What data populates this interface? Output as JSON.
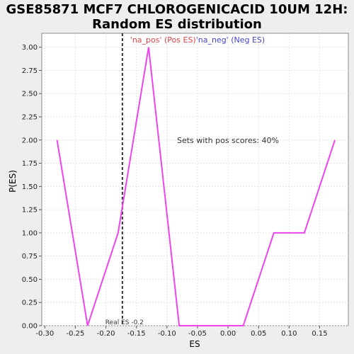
{
  "chart_data": {
    "type": "line",
    "title_line1": "GSE85871 MCF7 CHLOROGENICACID 10UM 12H:",
    "title_line2": "Random ES distribution",
    "xlabel": "ES",
    "ylabel": "P(ES)",
    "xlim": [
      -0.305,
      0.197
    ],
    "ylim": [
      0,
      3.15
    ],
    "x_ticks": [
      -0.3,
      -0.25,
      -0.2,
      -0.15,
      -0.1,
      -0.05,
      0.0,
      0.05,
      0.1,
      0.15
    ],
    "x_tick_labels": [
      "-0.30",
      "-0.25",
      "-0.20",
      "-0.15",
      "-0.10",
      "-0.05",
      "0.00",
      "0.05",
      "0.10",
      "0.15"
    ],
    "y_ticks": [
      0,
      0.25,
      0.5,
      0.75,
      1.0,
      1.25,
      1.5,
      1.75,
      2.0,
      2.25,
      2.5,
      2.75,
      3.0
    ],
    "y_tick_labels": [
      "0.00",
      "0.25",
      "0.50",
      "0.75",
      "1.00",
      "1.25",
      "1.50",
      "1.75",
      "2.00",
      "2.25",
      "2.50",
      "2.75",
      "3.00"
    ],
    "grid": true,
    "series": [
      {
        "color": "#ee44ee",
        "x": [
          -0.28,
          -0.23,
          -0.18,
          -0.13,
          -0.08,
          -0.03,
          0.025,
          0.075,
          0.125,
          0.175
        ],
        "y": [
          2.0,
          0.0,
          1.0,
          3.0,
          0.0,
          0.0,
          0.0,
          1.0,
          1.0,
          2.0
        ]
      }
    ],
    "real_es": {
      "x": -0.173,
      "label": "Real ES -0.2",
      "color": "#333333"
    },
    "legend": {
      "pos_label": "'na_pos' (Pos ES)",
      "pos_color": "#dd4444",
      "neg_label": "'na_neg' (Neg ES)",
      "neg_color": "#4444cc"
    },
    "annotation": "Sets with pos scores: 40%"
  }
}
